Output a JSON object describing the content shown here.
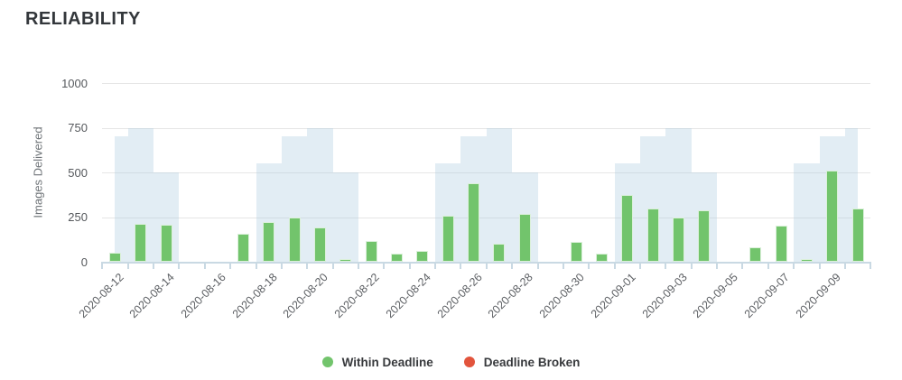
{
  "title": "RELIABILITY",
  "legend": {
    "items": [
      {
        "label": "Within Deadline",
        "color": "#72c46c"
      },
      {
        "label": "Deadline Broken",
        "color": "#e2543c"
      }
    ]
  },
  "chart_data": {
    "type": "bar",
    "title": "RELIABILITY",
    "xlabel": "",
    "ylabel": "Images Delivered",
    "ylim": [
      0,
      1000
    ],
    "y_ticks": [
      0,
      250,
      500,
      750,
      1000
    ],
    "grid": true,
    "legend_position": "bottom",
    "categories": [
      "2020-08-12",
      "2020-08-13",
      "2020-08-14",
      "2020-08-15",
      "2020-08-16",
      "2020-08-17",
      "2020-08-18",
      "2020-08-19",
      "2020-08-20",
      "2020-08-21",
      "2020-08-22",
      "2020-08-23",
      "2020-08-24",
      "2020-08-25",
      "2020-08-26",
      "2020-08-27",
      "2020-08-28",
      "2020-08-29",
      "2020-08-30",
      "2020-08-31",
      "2020-09-01",
      "2020-09-02",
      "2020-09-03",
      "2020-09-04",
      "2020-09-05",
      "2020-09-06",
      "2020-09-07",
      "2020-09-08",
      "2020-09-09",
      "2020-09-10"
    ],
    "x_tick_labels": [
      "2020-08-12",
      "2020-08-14",
      "2020-08-16",
      "2020-08-18",
      "2020-08-20",
      "2020-08-22",
      "2020-08-24",
      "2020-08-26",
      "2020-08-28",
      "2020-08-30",
      "2020-09-01",
      "2020-09-03",
      "2020-09-05",
      "2020-09-07",
      "2020-09-09"
    ],
    "x_tick_label_step": 2,
    "series": [
      {
        "name": "Within Deadline",
        "type": "bar",
        "color": "#72c46c",
        "values": [
          50,
          210,
          205,
          0,
          0,
          155,
          220,
          245,
          190,
          15,
          115,
          45,
          60,
          260,
          440,
          100,
          270,
          0,
          110,
          45,
          375,
          300,
          245,
          290,
          0,
          80,
          200,
          15,
          510,
          300
        ]
      },
      {
        "name": "Deadline Broken",
        "type": "bar",
        "color": "#e2543c",
        "values": [
          0,
          0,
          0,
          0,
          0,
          0,
          0,
          0,
          0,
          0,
          0,
          0,
          0,
          0,
          0,
          0,
          0,
          0,
          0,
          0,
          0,
          0,
          0,
          0,
          0,
          0,
          0,
          0,
          0,
          0
        ]
      },
      {
        "name": "capacity-background",
        "type": "stepped-area",
        "color": "#e4eef5",
        "values": [
          700,
          750,
          500,
          0,
          0,
          0,
          550,
          700,
          750,
          500,
          0,
          0,
          0,
          550,
          700,
          750,
          500,
          0,
          0,
          0,
          550,
          700,
          750,
          500,
          0,
          0,
          0,
          550,
          700,
          750
        ]
      }
    ]
  }
}
